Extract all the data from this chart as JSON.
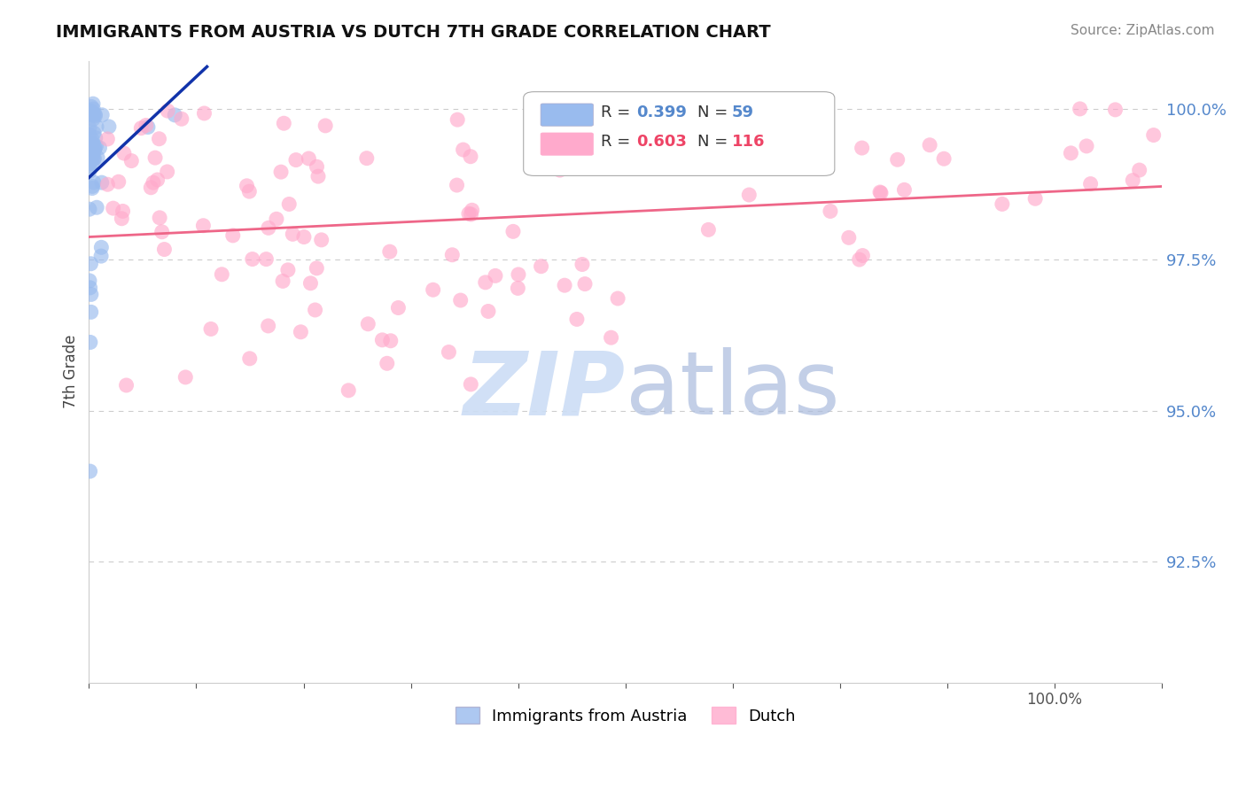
{
  "title": "IMMIGRANTS FROM AUSTRIA VS DUTCH 7TH GRADE CORRELATION CHART",
  "source": "Source: ZipAtlas.com",
  "ylabel": "7th Grade",
  "ytick_values": [
    0.925,
    0.95,
    0.975,
    1.0
  ],
  "xlim": [
    0.0,
    1.0
  ],
  "ylim": [
    0.905,
    1.008
  ],
  "blue_color": "#99BBEE",
  "pink_color": "#FFAACC",
  "blue_line_color": "#1133AA",
  "pink_line_color": "#EE6688",
  "ytick_color": "#5588CC",
  "grid_color": "#CCCCCC",
  "watermark_zip_color": "#CCDDF5",
  "watermark_atlas_color": "#AABBDD"
}
